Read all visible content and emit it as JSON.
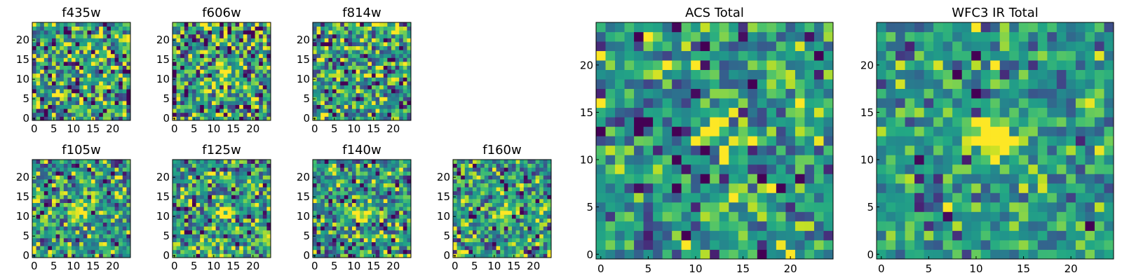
{
  "figure_title": "",
  "chart_data": [
    {
      "type": "heatmap",
      "title": "f435w",
      "xticks": [
        0,
        5,
        10,
        15,
        20
      ],
      "yticks": [
        0,
        5,
        10,
        15,
        20
      ],
      "xlim": [
        -0.5,
        24.5
      ],
      "ylim": [
        -0.5,
        24.5
      ],
      "grid": [
        25,
        25
      ],
      "colormap": "viridis",
      "peak": {
        "x": 12,
        "y": 12,
        "strength": 0.0
      },
      "noise": 0.3,
      "seed": 11
    },
    {
      "type": "heatmap",
      "title": "f606w",
      "xticks": [
        0,
        5,
        10,
        15,
        20
      ],
      "yticks": [
        0,
        5,
        10,
        15,
        20
      ],
      "xlim": [
        -0.5,
        24.5
      ],
      "ylim": [
        -0.5,
        24.5
      ],
      "grid": [
        25,
        25
      ],
      "colormap": "viridis",
      "peak": {
        "x": 12,
        "y": 12,
        "strength": 0.35
      },
      "noise": 0.3,
      "seed": 23
    },
    {
      "type": "heatmap",
      "title": "f814w",
      "xticks": [
        0,
        5,
        10,
        15,
        20
      ],
      "yticks": [
        0,
        5,
        10,
        15,
        20
      ],
      "xlim": [
        -0.5,
        24.5
      ],
      "ylim": [
        -0.5,
        24.5
      ],
      "grid": [
        25,
        25
      ],
      "colormap": "viridis",
      "peak": {
        "x": 12,
        "y": 12,
        "strength": 0.25
      },
      "noise": 0.3,
      "seed": 37
    },
    {
      "type": "heatmap",
      "title": "f105w",
      "xticks": [
        0,
        5,
        10,
        15,
        20
      ],
      "yticks": [
        0,
        5,
        10,
        15,
        20
      ],
      "xlim": [
        -0.5,
        24.5
      ],
      "ylim": [
        -0.5,
        24.5
      ],
      "grid": [
        25,
        25
      ],
      "colormap": "viridis",
      "peak": {
        "x": 12,
        "y": 11,
        "strength": 0.5
      },
      "noise": 0.25,
      "seed": 41
    },
    {
      "type": "heatmap",
      "title": "f125w",
      "xticks": [
        0,
        5,
        10,
        15,
        20
      ],
      "yticks": [
        0,
        5,
        10,
        15,
        20
      ],
      "xlim": [
        -0.5,
        24.5
      ],
      "ylim": [
        -0.5,
        24.5
      ],
      "grid": [
        25,
        25
      ],
      "colormap": "viridis",
      "peak": {
        "x": 12,
        "y": 11,
        "strength": 0.5
      },
      "noise": 0.25,
      "seed": 53
    },
    {
      "type": "heatmap",
      "title": "f140w",
      "xticks": [
        0,
        5,
        10,
        15,
        20
      ],
      "yticks": [
        0,
        5,
        10,
        15,
        20
      ],
      "xlim": [
        -0.5,
        24.5
      ],
      "ylim": [
        -0.5,
        24.5
      ],
      "grid": [
        25,
        25
      ],
      "colormap": "viridis",
      "peak": {
        "x": 12,
        "y": 11,
        "strength": 0.45
      },
      "noise": 0.25,
      "seed": 67
    },
    {
      "type": "heatmap",
      "title": "f160w",
      "xticks": [
        0,
        5,
        10,
        15,
        20
      ],
      "yticks": [
        0,
        5,
        10,
        15,
        20
      ],
      "xlim": [
        -0.5,
        24.5
      ],
      "ylim": [
        -0.5,
        24.5
      ],
      "grid": [
        25,
        25
      ],
      "colormap": "viridis",
      "peak": {
        "x": 12,
        "y": 11,
        "strength": 0.5
      },
      "noise": 0.25,
      "seed": 79
    },
    {
      "type": "heatmap",
      "title": "ACS Total",
      "xticks": [
        0,
        5,
        10,
        15,
        20
      ],
      "yticks": [
        0,
        5,
        10,
        15,
        20
      ],
      "xlim": [
        -0.5,
        24.5
      ],
      "ylim": [
        -0.5,
        24.5
      ],
      "grid": [
        25,
        25
      ],
      "colormap": "viridis",
      "peak": {
        "x": 12,
        "y": 12,
        "strength": 0.3
      },
      "noise": 0.22,
      "seed": 83
    },
    {
      "type": "heatmap",
      "title": "WFC3 IR Total",
      "xticks": [
        0,
        5,
        10,
        15,
        20
      ],
      "yticks": [
        0,
        5,
        10,
        15,
        20
      ],
      "xlim": [
        -0.5,
        24.5
      ],
      "ylim": [
        -0.5,
        24.5
      ],
      "grid": [
        25,
        25
      ],
      "colormap": "viridis",
      "peak": {
        "x": 12,
        "y": 12,
        "strength": 0.6
      },
      "noise": 0.18,
      "seed": 97
    }
  ]
}
